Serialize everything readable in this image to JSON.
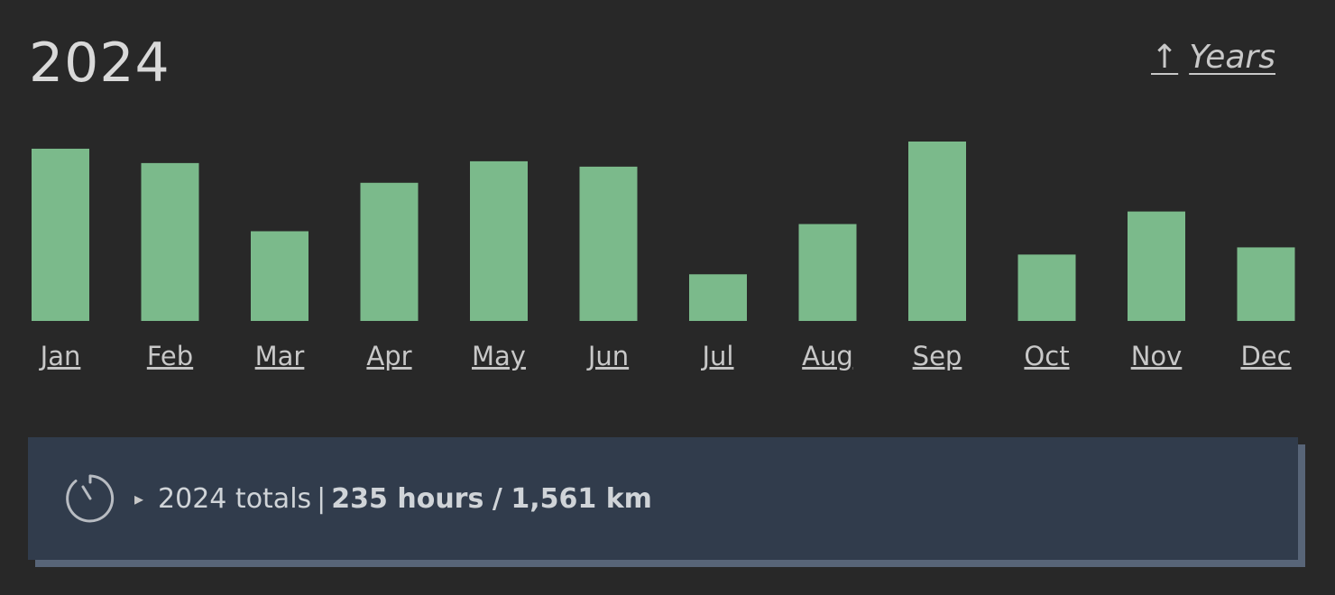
{
  "header": {
    "title": "2024",
    "years_link_arrow": "↑",
    "years_link_label": "Years"
  },
  "chart_data": {
    "type": "bar",
    "title": "",
    "xlabel": "",
    "ylabel": "",
    "categories": [
      "Jan",
      "Feb",
      "Mar",
      "Apr",
      "May",
      "Jun",
      "Jul",
      "Aug",
      "Sep",
      "Oct",
      "Nov",
      "Dec"
    ],
    "values": [
      192,
      176,
      100,
      154,
      178,
      172,
      52,
      108,
      200,
      74,
      122,
      82
    ],
    "ylim": [
      0,
      200
    ],
    "grid": false,
    "bar_color": "#7bba8b"
  },
  "totals": {
    "icon": "stopwatch-icon",
    "caret": "▸",
    "label": "2024 totals",
    "separator": "|",
    "hours": "235 hours",
    "slash": "/",
    "distance": "1,561 km"
  },
  "colors": {
    "background": "#282828",
    "bar": "#7bba8b",
    "totals_bg": "#313c4c",
    "totals_shadow": "#586578"
  }
}
